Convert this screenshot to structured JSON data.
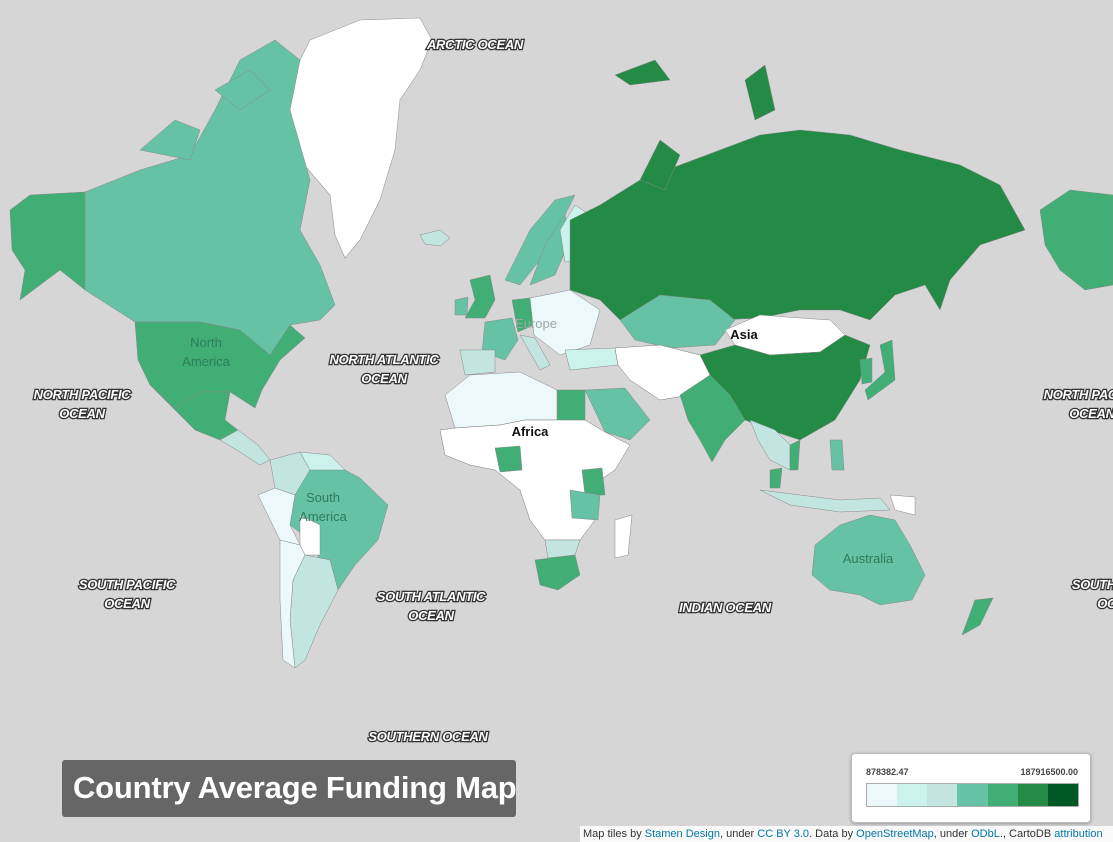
{
  "title": "Country Average Funding Map",
  "oceans": [
    {
      "id": "arctic",
      "lines": [
        "ARCTIC OCEAN"
      ]
    },
    {
      "id": "north-atlantic",
      "lines": [
        "NORTH ATLANTIC",
        "OCEAN"
      ]
    },
    {
      "id": "north-pacific-west",
      "lines": [
        "NORTH PACIFIC",
        "OCEAN"
      ]
    },
    {
      "id": "north-pacific-east",
      "lines": [
        "NORTH PACIFIC",
        "OCEAN"
      ]
    },
    {
      "id": "south-pacific",
      "lines": [
        "SOUTH PACIFIC",
        "OCEAN"
      ]
    },
    {
      "id": "south-atlantic",
      "lines": [
        "SOUTH ATLANTIC",
        "OCEAN"
      ]
    },
    {
      "id": "indian",
      "lines": [
        "INDIAN OCEAN"
      ]
    },
    {
      "id": "southern",
      "lines": [
        "SOUTHERN OCEAN"
      ]
    },
    {
      "id": "south-pacific-east",
      "lines": [
        "SOUTH PACIFIC",
        "OCEAN"
      ]
    }
  ],
  "continents": [
    {
      "id": "north-america",
      "lines": [
        "North",
        "America"
      ]
    },
    {
      "id": "south-america",
      "lines": [
        "South",
        "America"
      ]
    },
    {
      "id": "europe",
      "lines": [
        "Europe"
      ]
    },
    {
      "id": "africa",
      "lines": [
        "Africa"
      ]
    },
    {
      "id": "asia",
      "lines": [
        "Asia"
      ]
    },
    {
      "id": "australia",
      "lines": [
        "Australia"
      ]
    }
  ],
  "legend": {
    "min": "878382.47",
    "max": "187916500.00",
    "colors": [
      "#edf8fb",
      "#ccf2ec",
      "#c2e6df",
      "#66c2a4",
      "#41ae76",
      "#238b45",
      "#005824"
    ]
  },
  "attribution": {
    "p1": "Map tiles by ",
    "l1": "Stamen Design",
    "p2": ", under ",
    "l2": "CC BY 3.0",
    "p3": ". Data by ",
    "l3": "OpenStreetMap",
    "p4": ", under ",
    "l4": "ODbL",
    "p5": "., CartoDB ",
    "l5": "attribution"
  },
  "colors": {
    "water": "#d6d6d6",
    "no_data": "#ffffff",
    "c1": "#edf8fb",
    "c2": "#ccf2ec",
    "c3": "#c2e6df",
    "c4": "#66c2a4",
    "c5": "#41ae76",
    "c6": "#238b45",
    "c7": "#005824"
  }
}
